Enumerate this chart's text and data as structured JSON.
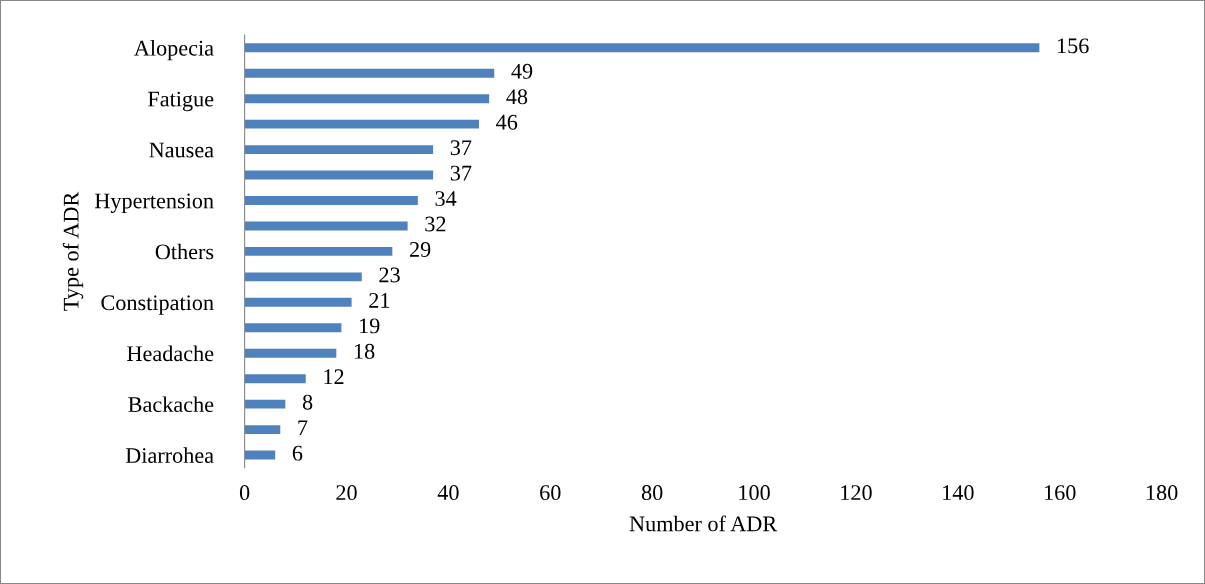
{
  "chart_data": {
    "type": "bar",
    "orientation": "horizontal",
    "xlabel": "Number of ADR",
    "ylabel": "Type of ADR",
    "categories": [
      "Alopecia",
      null,
      "Fatigue",
      null,
      "Nausea",
      null,
      "Hypertension",
      null,
      "Others",
      null,
      "Constipation",
      null,
      "Headache",
      null,
      "Backache",
      null,
      "Diarrohea"
    ],
    "values": [
      156,
      49,
      48,
      46,
      37,
      37,
      34,
      32,
      29,
      23,
      21,
      19,
      18,
      12,
      8,
      7,
      6
    ],
    "color": "#4f81bd",
    "xlim": [
      0,
      180
    ],
    "xticks": [
      0,
      20,
      40,
      60,
      80,
      100,
      120,
      140,
      160,
      180
    ],
    "data_labels": true,
    "grid": false,
    "legend": false
  }
}
